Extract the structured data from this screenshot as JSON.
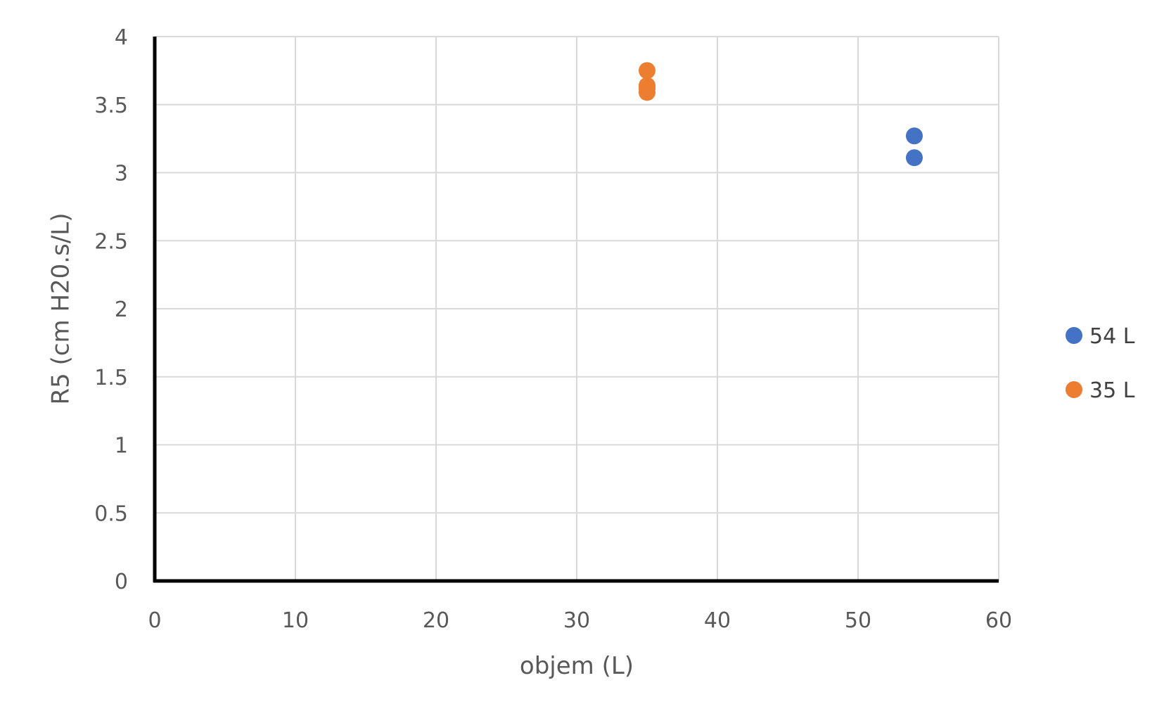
{
  "chart_data": {
    "type": "scatter",
    "title": "",
    "xlabel": "objem (L)",
    "ylabel": "R5 (cm H20.s/L)",
    "xlim": [
      0,
      60
    ],
    "ylim": [
      0,
      4
    ],
    "x_ticks": [
      0,
      10,
      20,
      30,
      40,
      50,
      60
    ],
    "y_ticks": [
      0,
      0.5,
      1,
      1.5,
      2,
      2.5,
      3,
      3.5,
      4
    ],
    "grid": true,
    "legend_position": "right",
    "series": [
      {
        "name": "54 L",
        "color": "#4472c4",
        "points": [
          {
            "x": 54,
            "y": 3.27
          },
          {
            "x": 54,
            "y": 3.11
          }
        ]
      },
      {
        "name": "35 L",
        "color": "#ed7d31",
        "points": [
          {
            "x": 35,
            "y": 3.75
          },
          {
            "x": 35,
            "y": 3.64
          },
          {
            "x": 35,
            "y": 3.62
          },
          {
            "x": 35,
            "y": 3.59
          }
        ]
      }
    ]
  }
}
